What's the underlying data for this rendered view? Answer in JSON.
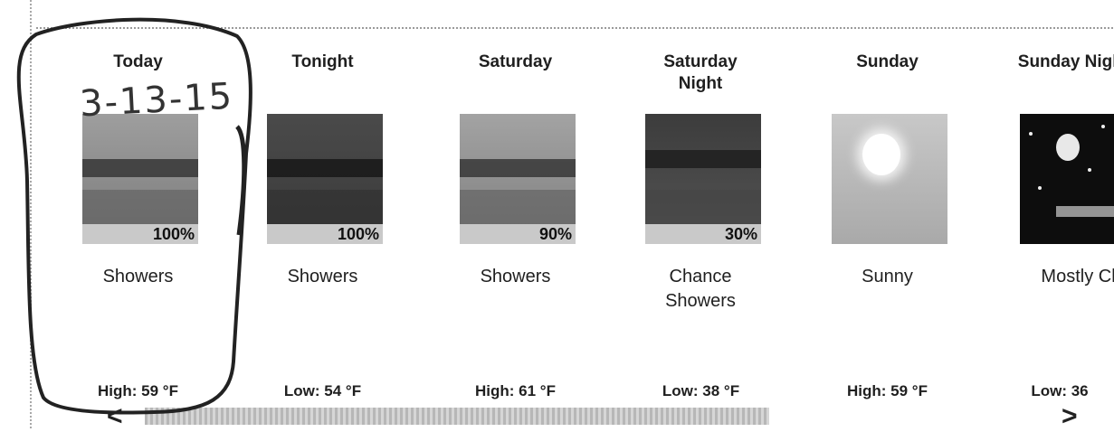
{
  "forecast": {
    "periods": [
      {
        "name": "Today",
        "pop": "100%",
        "desc": "Showers",
        "temp": "High: 59 °F",
        "icon": "showers-icon"
      },
      {
        "name": "Tonight",
        "pop": "100%",
        "desc": "Showers",
        "temp": "Low: 54 °F",
        "icon": "night-showers-icon"
      },
      {
        "name": "Saturday",
        "pop": "90%",
        "desc": "Showers",
        "temp": "High: 61 °F",
        "icon": "showers-icon"
      },
      {
        "name": "Saturday Night",
        "pop": "30%",
        "desc": "Chance Showers",
        "temp": "Low: 38 °F",
        "icon": "night-chance-showers-icon"
      },
      {
        "name": "Sunday",
        "pop": "",
        "desc": "Sunny",
        "temp": "High: 59 °F",
        "icon": "sunny-icon"
      },
      {
        "name": "Sunday Night",
        "pop": "",
        "desc": "Mostly Clear",
        "temp": "Low: 36",
        "icon": "mostly-clear-night-icon"
      }
    ]
  },
  "annotation": {
    "handwritten_date": "3-13-15"
  },
  "scroll": {
    "left_arrow": "<",
    "right_arrow": ">"
  }
}
